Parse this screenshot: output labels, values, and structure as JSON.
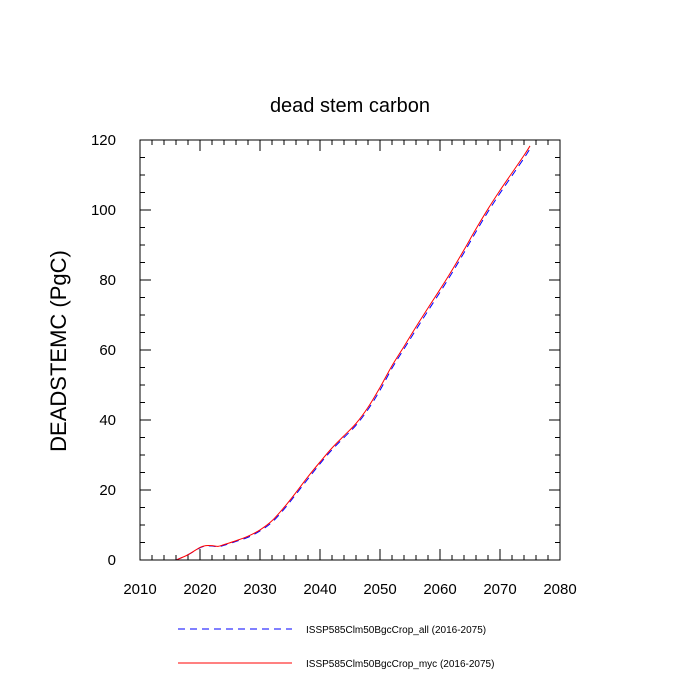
{
  "chart_data": {
    "type": "line",
    "title": "dead stem carbon",
    "xlabel": "",
    "ylabel": "DEADSTEMC  (PgC)",
    "xlim": [
      2010,
      2080
    ],
    "ylim": [
      0,
      120
    ],
    "x_ticks": [
      2010,
      2020,
      2030,
      2040,
      2050,
      2060,
      2070,
      2080
    ],
    "y_ticks": [
      0,
      20,
      40,
      60,
      80,
      100,
      120
    ],
    "grid": false,
    "legend_position": "bottom",
    "series": [
      {
        "name": "ISSP585Clm50BgcCrop_all (2016-2075)",
        "color": "#0000ff",
        "style": "dashed",
        "x": [
          2016,
          2018,
          2020,
          2021,
          2022,
          2023,
          2024,
          2026,
          2028,
          2030,
          2032,
          2034,
          2036,
          2038,
          2040,
          2042,
          2044,
          2046,
          2048,
          2050,
          2052,
          2054,
          2056,
          2058,
          2060,
          2062,
          2064,
          2066,
          2068,
          2070,
          2072,
          2074,
          2075
        ],
        "values": [
          0,
          1.5,
          3.5,
          4.0,
          4.0,
          3.8,
          4.2,
          5.3,
          6.5,
          8.3,
          10.8,
          14.5,
          18.8,
          23.2,
          27.5,
          31.5,
          35.0,
          38.5,
          43.0,
          48.5,
          54.8,
          60.3,
          65.8,
          71.2,
          76.5,
          82.0,
          87.8,
          93.8,
          99.5,
          104.8,
          109.8,
          114.8,
          117.5
        ]
      },
      {
        "name": "ISSP585Clm50BgcCrop_myc (2016-2075)",
        "color": "#ff0000",
        "style": "solid",
        "x": [
          2016,
          2018,
          2020,
          2021,
          2022,
          2023,
          2024,
          2026,
          2028,
          2030,
          2032,
          2034,
          2036,
          2038,
          2040,
          2042,
          2044,
          2046,
          2048,
          2050,
          2052,
          2054,
          2056,
          2058,
          2060,
          2062,
          2064,
          2066,
          2068,
          2070,
          2072,
          2074,
          2075
        ],
        "values": [
          0,
          1.5,
          3.6,
          4.1,
          4.1,
          3.9,
          4.4,
          5.5,
          6.8,
          8.6,
          11.2,
          15.0,
          19.3,
          23.8,
          28.0,
          32.0,
          35.5,
          39.0,
          43.6,
          49.3,
          55.5,
          61.0,
          66.6,
          72.0,
          77.3,
          82.8,
          88.6,
          94.6,
          100.3,
          105.6,
          110.6,
          115.6,
          118.3
        ]
      }
    ]
  }
}
